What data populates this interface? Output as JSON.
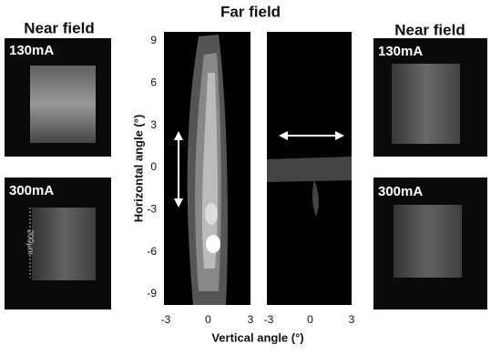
{
  "far_field": {
    "title": "Far field",
    "y_axis_label": "Horizontal angle (°)",
    "x_axis_label": "Vertical angle (°)",
    "yticks": [
      9,
      6,
      3,
      0,
      -3,
      -6,
      -9
    ],
    "plots": [
      {
        "xticks": [
          -3,
          0,
          3
        ]
      },
      {
        "xticks": [
          -3,
          0,
          3
        ]
      }
    ]
  },
  "near_field_left": {
    "title": "Near field",
    "panels": [
      {
        "label": "130mA"
      },
      {
        "label": "300mA",
        "scale_bar": "200µm"
      }
    ]
  },
  "near_field_right": {
    "title": "Near field",
    "panels": [
      {
        "label": "130mA"
      },
      {
        "label": "300mA"
      }
    ]
  }
}
